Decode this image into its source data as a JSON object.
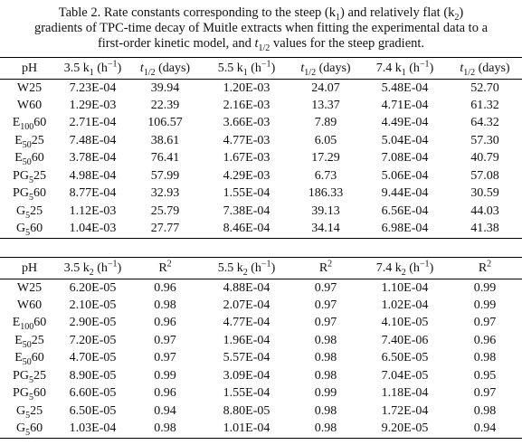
{
  "caption": {
    "line1": [
      "Table 2. Rate constants corresponding to the steep (k",
      "1",
      ") and relatively flat (k",
      "2",
      ")"
    ],
    "line2": [
      "gradients of TPC-time decay of Muitle extracts when fitting the experimental data to a"
    ],
    "line3": [
      "first-order kinetic model, and ",
      "t",
      "1/2",
      " values for the steep gradient."
    ]
  },
  "table1": {
    "header": [
      [
        "pH"
      ],
      [
        "3.5 k",
        "1",
        " (h",
        "−1",
        ")"
      ],
      [
        "t",
        "1/2",
        " (days)"
      ],
      [
        "5.5 k",
        "1",
        " (h",
        "−1",
        ")"
      ],
      [
        "t",
        "1/2",
        " (days)"
      ],
      [
        "7.4 k",
        "1",
        " (h",
        "−1",
        ")"
      ],
      [
        "t",
        "1/2",
        " (days)"
      ]
    ],
    "rows": [
      [
        [
          "W25"
        ],
        "7.23E-04",
        "39.94",
        "1.20E-03",
        "24.07",
        "5.48E-04",
        "52.70"
      ],
      [
        [
          "W60"
        ],
        "1.29E-03",
        "22.39",
        "2.16E-03",
        "13.37",
        "4.71E-04",
        "61.32"
      ],
      [
        [
          "E",
          "100",
          "60"
        ],
        "2.71E-04",
        "106.57",
        "3.66E-03",
        "7.89",
        "4.49E-04",
        "64.32"
      ],
      [
        [
          "E",
          "50",
          "25"
        ],
        "7.48E-04",
        "38.61",
        "4.77E-03",
        "6.05",
        "5.04E-04",
        "57.30"
      ],
      [
        [
          "E",
          "50",
          "60"
        ],
        "3.78E-04",
        "76.41",
        "1.67E-03",
        "17.29",
        "7.08E-04",
        "40.79"
      ],
      [
        [
          "PG",
          "5",
          "25"
        ],
        "4.98E-04",
        "57.99",
        "4.29E-03",
        "6.73",
        "5.06E-04",
        "57.08"
      ],
      [
        [
          "PG",
          "5",
          "60"
        ],
        "8.77E-04",
        "32.93",
        "1.55E-04",
        "186.33",
        "9.44E-04",
        "30.59"
      ],
      [
        [
          "G",
          "5",
          "25"
        ],
        "1.12E-03",
        "25.79",
        "7.38E-04",
        "39.13",
        "6.56E-04",
        "44.03"
      ],
      [
        [
          "G",
          "5",
          "60"
        ],
        "1.04E-03",
        "27.77",
        "8.46E-04",
        "34.14",
        "6.98E-04",
        "41.38"
      ]
    ]
  },
  "table2": {
    "header": [
      [
        "pH"
      ],
      [
        "3.5 k",
        "2",
        " (h",
        "−1",
        ")"
      ],
      [
        "R",
        "2"
      ],
      [
        "5.5 k",
        "2",
        " (h",
        "−1",
        ")"
      ],
      [
        "R",
        "2"
      ],
      [
        "7.4 k",
        "2",
        " (h",
        "−1",
        ")"
      ],
      [
        "R",
        "2"
      ]
    ],
    "rows": [
      [
        [
          "W25"
        ],
        "6.20E-05",
        "0.96",
        "4.88E-04",
        "0.97",
        "1.10E-04",
        "0.99"
      ],
      [
        [
          "W60"
        ],
        "2.10E-05",
        "0.98",
        "2.07E-04",
        "0.97",
        "1.02E-04",
        "0.99"
      ],
      [
        [
          "E",
          "100",
          "60"
        ],
        "2.90E-05",
        "0.96",
        "4.77E-04",
        "0.97",
        "4.10E-05",
        "0.97"
      ],
      [
        [
          "E",
          "50",
          "25"
        ],
        "7.20E-05",
        "0.97",
        "1.96E-04",
        "0.98",
        "7.40E-06",
        "0.96"
      ],
      [
        [
          "E",
          "50",
          "60"
        ],
        "4.70E-05",
        "0.97",
        "5.57E-04",
        "0.98",
        "6.50E-05",
        "0.98"
      ],
      [
        [
          "PG",
          "5",
          "25"
        ],
        "8.90E-05",
        "0.99",
        "3.09E-04",
        "0.98",
        "7.04E-05",
        "0.95"
      ],
      [
        [
          "PG",
          "5",
          "60"
        ],
        "6.60E-05",
        "0.96",
        "1.55E-04",
        "0.99",
        "1.18E-04",
        "0.97"
      ],
      [
        [
          "G",
          "5",
          "25"
        ],
        "6.50E-05",
        "0.94",
        "8.80E-05",
        "0.98",
        "1.72E-04",
        "0.98"
      ],
      [
        [
          "G",
          "5",
          "60"
        ],
        "1.03E-04",
        "0.98",
        "1.01E-04",
        "0.98",
        "9.20E-05",
        "0.94"
      ]
    ]
  }
}
